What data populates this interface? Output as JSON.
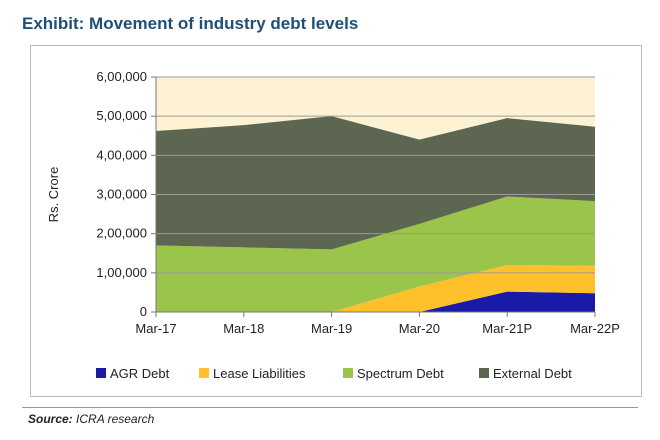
{
  "title": "Exhibit: Movement of industry debt levels",
  "source": {
    "label": "Source:",
    "text": "ICRA research"
  },
  "colors": {
    "plot_bg": "#fdf3d4",
    "grid": "#9a9a9a",
    "AGR Debt": "#1a1aa8",
    "Lease Liabilities": "#ffc12b",
    "Spectrum Debt": "#9bc44a",
    "External Debt": "#5d6650"
  },
  "chart_data": {
    "type": "area",
    "stacked": true,
    "title": "Exhibit: Movement of industry debt levels",
    "xlabel": "",
    "ylabel": "Rs. Crore",
    "ylim": [
      0,
      600000
    ],
    "yticks": [
      0,
      100000,
      200000,
      300000,
      400000,
      500000,
      600000
    ],
    "ytick_labels": [
      "0",
      "1,00,000",
      "2,00,000",
      "3,00,000",
      "4,00,000",
      "5,00,000",
      "6,00,000"
    ],
    "categories": [
      "Mar-17",
      "Mar-18",
      "Mar-19",
      "Mar-20",
      "Mar-21P",
      "Mar-22P"
    ],
    "grid": true,
    "legend": "bottom",
    "series": [
      {
        "name": "AGR Debt",
        "values": [
          0,
          0,
          0,
          0,
          52000,
          48000
        ]
      },
      {
        "name": "Lease Liabilities",
        "values": [
          0,
          0,
          0,
          65000,
          68000,
          70000
        ]
      },
      {
        "name": "Spectrum Debt",
        "values": [
          170000,
          165000,
          160000,
          160000,
          175000,
          165000
        ]
      },
      {
        "name": "External Debt",
        "values": [
          292000,
          312000,
          340000,
          215000,
          200000,
          190000
        ]
      }
    ]
  }
}
